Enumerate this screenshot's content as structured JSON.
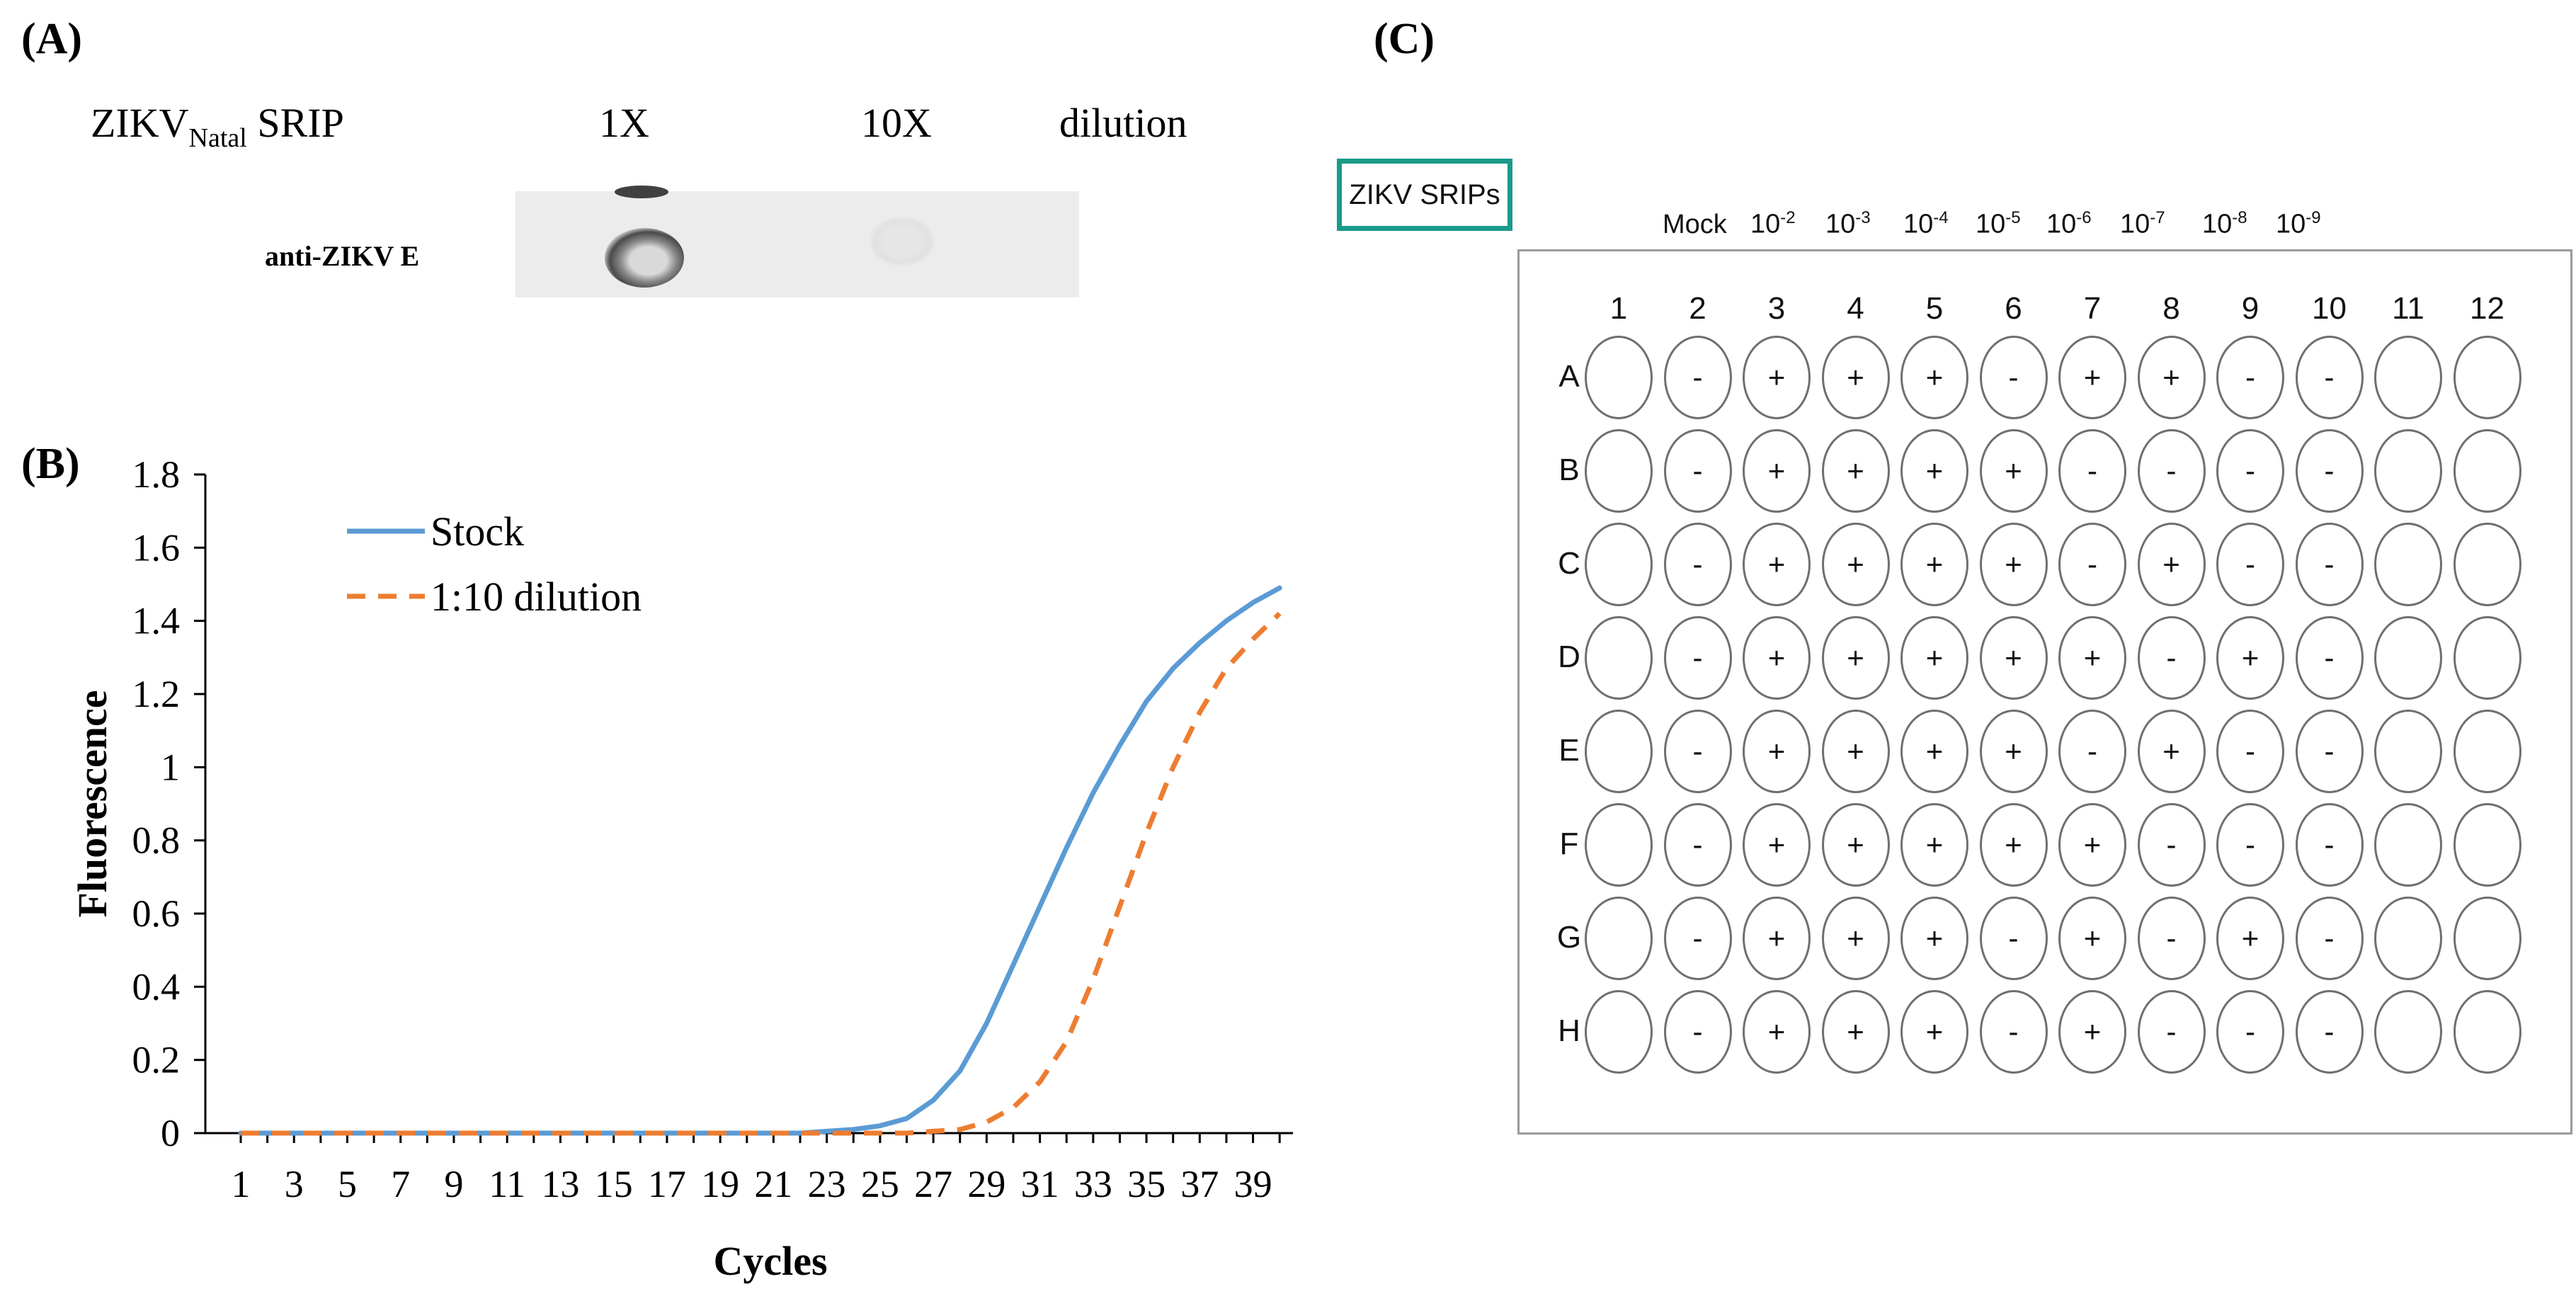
{
  "panel_a": {
    "label": "(A)",
    "title_main": "ZIKV",
    "title_sub": "Natal",
    "title_rest": " SRIP",
    "col_1x": "1X",
    "col_10x": "10X",
    "col_dilution": "dilution",
    "row_label": "anti-ZIKV E"
  },
  "panel_b": {
    "label": "(B)"
  },
  "panel_c": {
    "label": "(C)",
    "srips_label": "ZIKV SRIPs",
    "mock_label": "Mock",
    "dilution_headers": [
      {
        "base": "10",
        "exp": "-2"
      },
      {
        "base": "10",
        "exp": "-3"
      },
      {
        "base": "10",
        "exp": "-4"
      },
      {
        "base": "10",
        "exp": "-5"
      },
      {
        "base": "10",
        "exp": "-6"
      },
      {
        "base": "10",
        "exp": "-7"
      },
      {
        "base": "10",
        "exp": "-8"
      },
      {
        "base": "10",
        "exp": "-9"
      }
    ],
    "columns": [
      "1",
      "2",
      "3",
      "4",
      "5",
      "6",
      "7",
      "8",
      "9",
      "10",
      "11",
      "12"
    ],
    "rows": [
      {
        "letter": "A",
        "wells": [
          "",
          "-",
          "+",
          "+",
          "+",
          "-",
          "+",
          "+",
          "-",
          "-",
          "",
          ""
        ]
      },
      {
        "letter": "B",
        "wells": [
          "",
          "-",
          "+",
          "+",
          "+",
          "+",
          "-",
          "-",
          "-",
          "-",
          "",
          ""
        ]
      },
      {
        "letter": "C",
        "wells": [
          "",
          "-",
          "+",
          "+",
          "+",
          "+",
          "-",
          "+",
          "-",
          "-",
          "",
          ""
        ]
      },
      {
        "letter": "D",
        "wells": [
          "",
          "-",
          "+",
          "+",
          "+",
          "+",
          "+",
          "-",
          "+",
          "-",
          "",
          ""
        ]
      },
      {
        "letter": "E",
        "wells": [
          "",
          "-",
          "+",
          "+",
          "+",
          "+",
          "-",
          "+",
          "-",
          "-",
          "",
          ""
        ]
      },
      {
        "letter": "F",
        "wells": [
          "",
          "-",
          "+",
          "+",
          "+",
          "+",
          "+",
          "-",
          "-",
          "-",
          "",
          ""
        ]
      },
      {
        "letter": "G",
        "wells": [
          "",
          "-",
          "+",
          "+",
          "+",
          "-",
          "+",
          "-",
          "+",
          "-",
          "",
          ""
        ]
      },
      {
        "letter": "H",
        "wells": [
          "",
          "-",
          "+",
          "+",
          "+",
          "-",
          "+",
          "-",
          "-",
          "-",
          "",
          ""
        ]
      }
    ]
  },
  "chart_data": {
    "type": "line",
    "title": "",
    "xlabel": "Cycles",
    "ylabel": "Fluorescence",
    "ylim": [
      0,
      1.8
    ],
    "yticks": [
      "0",
      "0.2",
      "0.4",
      "0.6",
      "0.8",
      "1",
      "1.2",
      "1.4",
      "1.6",
      "1.8"
    ],
    "xtick_labels": [
      "1",
      "3",
      "5",
      "7",
      "9",
      "11",
      "13",
      "15",
      "17",
      "19",
      "21",
      "23",
      "25",
      "27",
      "29",
      "31",
      "33",
      "35",
      "37",
      "39"
    ],
    "x": [
      1,
      2,
      3,
      4,
      5,
      6,
      7,
      8,
      9,
      10,
      11,
      12,
      13,
      14,
      15,
      16,
      17,
      18,
      19,
      20,
      21,
      22,
      23,
      24,
      25,
      26,
      27,
      28,
      29,
      30,
      31,
      32,
      33,
      34,
      35,
      36,
      37,
      38,
      39,
      40
    ],
    "legend_position": "top-left",
    "grid": false,
    "series": [
      {
        "name": "Stock",
        "color": "#5b9bd5",
        "style": "solid",
        "values": [
          0,
          0,
          0,
          0,
          0,
          0,
          0,
          0,
          0,
          0,
          0,
          0,
          0,
          0,
          0,
          0,
          0,
          0,
          0,
          0,
          0,
          0,
          0.005,
          0.01,
          0.02,
          0.04,
          0.09,
          0.17,
          0.3,
          0.46,
          0.62,
          0.78,
          0.93,
          1.06,
          1.18,
          1.27,
          1.34,
          1.4,
          1.45,
          1.49
        ]
      },
      {
        "name": "1:10 dilution",
        "color": "#ed7d31",
        "style": "dashed",
        "values": [
          0,
          0,
          0,
          0,
          0,
          0,
          0,
          0,
          0,
          0,
          0,
          0,
          0,
          0,
          0,
          0,
          0,
          0,
          0,
          0,
          0,
          0,
          0,
          0,
          0,
          0,
          0.005,
          0.01,
          0.03,
          0.07,
          0.14,
          0.25,
          0.42,
          0.62,
          0.82,
          1.0,
          1.15,
          1.27,
          1.35,
          1.42
        ]
      }
    ]
  }
}
